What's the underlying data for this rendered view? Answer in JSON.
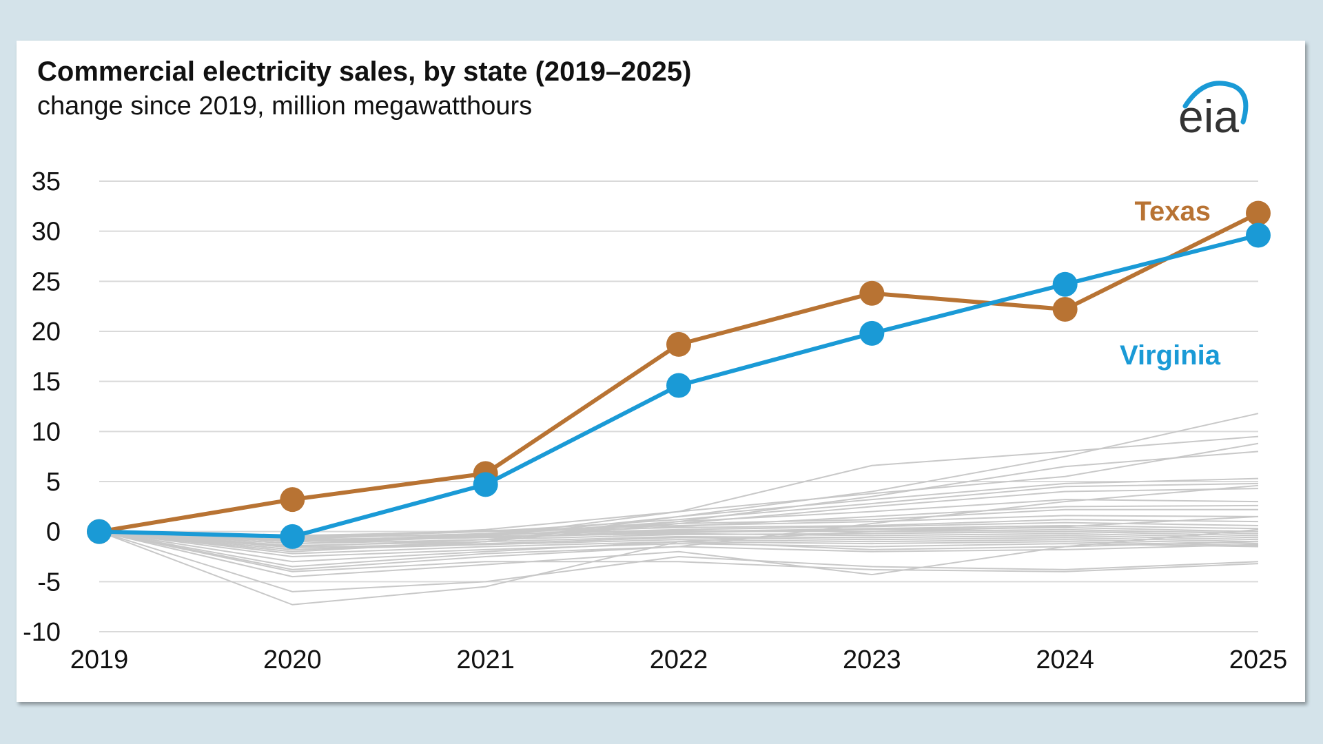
{
  "chart_data": {
    "type": "line",
    "title": "Commercial electricity sales, by state (2019–2025)",
    "subtitle": "change since 2019, million megawatthours",
    "logo_text": "eia",
    "x": [
      "2019",
      "2020",
      "2021",
      "2022",
      "2023",
      "2024",
      "2025"
    ],
    "ylim": [
      -10,
      35
    ],
    "yticks": [
      35,
      30,
      25,
      20,
      15,
      10,
      5,
      0,
      -5,
      -10
    ],
    "grid": true,
    "series": [
      {
        "name": "Texas",
        "color": "#b87333",
        "values": [
          0,
          3.2,
          5.8,
          18.7,
          23.8,
          22.2,
          31.8
        ]
      },
      {
        "name": "Virginia",
        "color": "#1a9ad6",
        "values": [
          0,
          -0.5,
          4.7,
          14.6,
          19.8,
          24.7,
          29.6
        ]
      }
    ],
    "other_states_color": "#c8c8c8",
    "other_states": [
      [
        0,
        -1.0,
        -0.5,
        2.0,
        6.6,
        8.0,
        9.5
      ],
      [
        0,
        -2.0,
        -1.0,
        1.5,
        4.0,
        7.5,
        11.8
      ],
      [
        0,
        -1.5,
        -0.8,
        1.0,
        3.5,
        6.5,
        8.0
      ],
      [
        0,
        -0.8,
        0.2,
        2.0,
        3.8,
        5.5,
        8.8
      ],
      [
        0,
        -1.2,
        -0.5,
        1.5,
        3.2,
        4.8,
        5.3
      ],
      [
        0,
        -0.6,
        0.0,
        1.2,
        2.8,
        4.5,
        4.8
      ],
      [
        0,
        -1.8,
        -1.0,
        0.8,
        2.5,
        4.0,
        4.3
      ],
      [
        0,
        -1.0,
        -0.3,
        1.0,
        2.0,
        3.2,
        3.0
      ],
      [
        0,
        -0.9,
        -0.4,
        0.5,
        1.5,
        2.5,
        2.6
      ],
      [
        0,
        -0.7,
        -0.2,
        0.8,
        1.2,
        2.2,
        2.2
      ],
      [
        0,
        -0.5,
        0.1,
        0.6,
        1.0,
        1.6,
        1.5
      ],
      [
        0,
        -0.4,
        0.0,
        0.4,
        0.6,
        1.2,
        1.0
      ],
      [
        0,
        -0.6,
        -0.3,
        0.2,
        0.5,
        0.9,
        0.6
      ],
      [
        0,
        -0.8,
        -0.5,
        0.0,
        0.3,
        0.6,
        0.3
      ],
      [
        0,
        -1.0,
        -0.6,
        -0.1,
        0.2,
        0.4,
        0.0
      ],
      [
        0,
        -0.5,
        -0.3,
        0.1,
        0.0,
        0.2,
        -0.2
      ],
      [
        0,
        -1.2,
        -0.8,
        -0.3,
        -0.2,
        0.0,
        -0.4
      ],
      [
        0,
        -0.9,
        -0.5,
        -0.2,
        -0.4,
        -0.2,
        -0.6
      ],
      [
        0,
        -1.4,
        -1.0,
        -0.5,
        -0.6,
        -0.4,
        -0.8
      ],
      [
        0,
        -1.6,
        -1.2,
        -0.6,
        -0.8,
        -0.6,
        -1.0
      ],
      [
        0,
        -1.8,
        -1.3,
        -0.8,
        -1.0,
        -0.8,
        -1.2
      ],
      [
        0,
        -2.2,
        -1.5,
        -1.0,
        -1.2,
        -1.0,
        -1.4
      ],
      [
        0,
        -2.5,
        -1.8,
        -1.2,
        -1.5,
        -1.2,
        -1.5
      ],
      [
        0,
        -3.0,
        -2.0,
        -1.0,
        -1.8,
        -1.5,
        -1.0
      ],
      [
        0,
        -3.5,
        -2.2,
        -1.5,
        -2.0,
        -1.8,
        -1.3
      ],
      [
        0,
        -4.0,
        -3.0,
        -3.0,
        -3.8,
        -4.0,
        -3.2
      ],
      [
        0,
        -4.5,
        -3.3,
        -2.0,
        -4.3,
        -1.5,
        0.2
      ],
      [
        0,
        -6.0,
        -5.0,
        -2.5,
        -3.5,
        -3.8,
        -3.0
      ],
      [
        0,
        -7.3,
        -5.5,
        -1.0,
        0.0,
        0.5,
        1.5
      ],
      [
        0,
        -3.8,
        -2.5,
        -1.5,
        0.8,
        3.0,
        4.6
      ]
    ]
  }
}
